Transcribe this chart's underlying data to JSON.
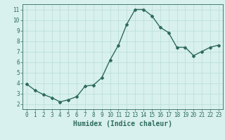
{
  "x": [
    0,
    1,
    2,
    3,
    4,
    5,
    6,
    7,
    8,
    9,
    10,
    11,
    12,
    13,
    14,
    15,
    16,
    17,
    18,
    19,
    20,
    21,
    22,
    23
  ],
  "y": [
    3.9,
    3.3,
    2.9,
    2.6,
    2.2,
    2.4,
    2.7,
    3.7,
    3.8,
    4.5,
    6.2,
    7.6,
    9.6,
    11.0,
    11.0,
    10.4,
    9.3,
    8.8,
    7.4,
    7.4,
    6.6,
    7.0,
    7.4,
    7.6
  ],
  "line_color": "#2e6b5e",
  "bg_color": "#d8f0ee",
  "grid_color": "#b8ddd8",
  "xlabel": "Humidex (Indice chaleur)",
  "xlim": [
    -0.5,
    23.5
  ],
  "ylim": [
    1.5,
    11.5
  ],
  "yticks": [
    2,
    3,
    4,
    5,
    6,
    7,
    8,
    9,
    10,
    11
  ],
  "xticks": [
    0,
    1,
    2,
    3,
    4,
    5,
    6,
    7,
    8,
    9,
    10,
    11,
    12,
    13,
    14,
    15,
    16,
    17,
    18,
    19,
    20,
    21,
    22,
    23
  ],
  "tick_fontsize": 5.5,
  "label_fontsize": 7.0,
  "marker": "D",
  "marker_size": 2.0,
  "linewidth": 1.0
}
